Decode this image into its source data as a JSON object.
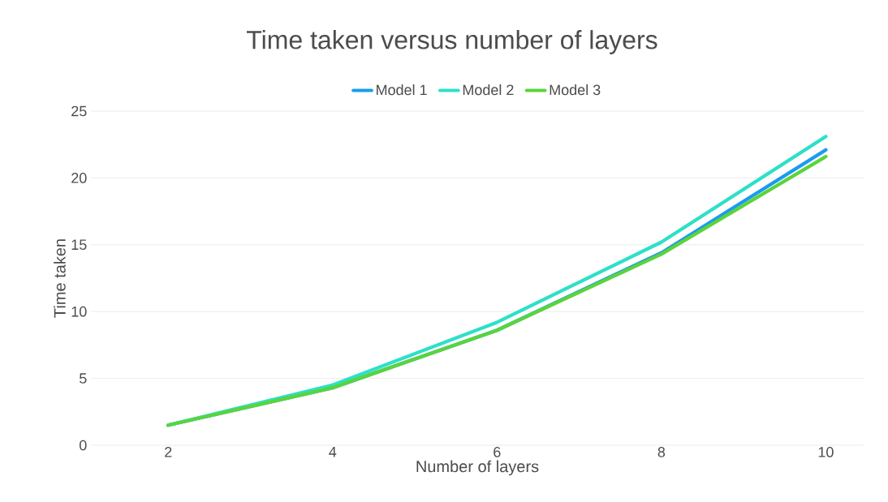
{
  "chart_data": {
    "type": "line",
    "title": "Time taken versus number of layers",
    "xlabel": "Number of layers",
    "ylabel": "Time taken",
    "categories": [
      "2",
      "4",
      "6",
      "8",
      "10"
    ],
    "series": [
      {
        "name": "Model 1",
        "color": "#1a9bf0",
        "values": [
          1.5,
          4.3,
          8.6,
          14.4,
          22.1
        ]
      },
      {
        "name": "Model 2",
        "color": "#2de0c8",
        "values": [
          1.5,
          4.5,
          9.2,
          15.2,
          23.1
        ]
      },
      {
        "name": "Model 3",
        "color": "#5ad43c",
        "values": [
          1.5,
          4.3,
          8.6,
          14.3,
          21.6
        ]
      }
    ],
    "ylim": [
      0,
      25
    ],
    "yticks": [
      0,
      5,
      10,
      15,
      20,
      25
    ],
    "grid": "y",
    "legend": "top",
    "marker": "none",
    "line_style": "solid"
  }
}
